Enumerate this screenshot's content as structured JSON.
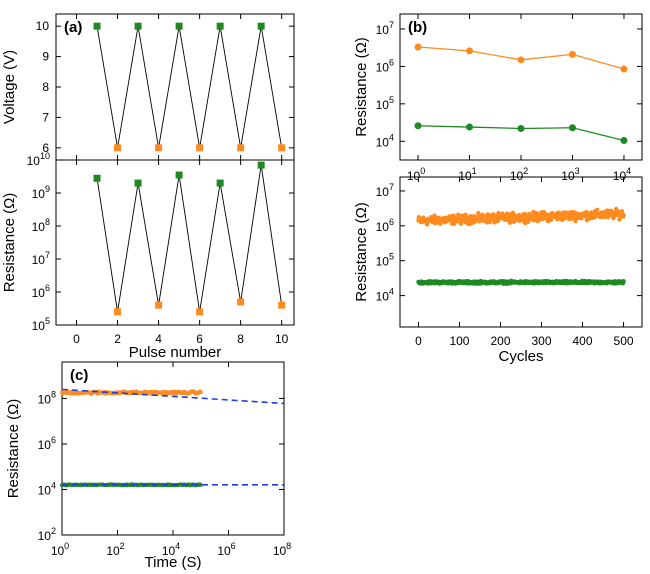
{
  "colors": {
    "on": "#1f8a24",
    "off": "#ff8a1e",
    "fit": "#1f3fe0",
    "line": "#000000"
  },
  "chart_data": [
    {
      "id": "a_top",
      "panel": "(a)",
      "type": "line",
      "ylabel": "Voltage (V)",
      "xlabel": "",
      "xlim": [
        -1,
        10.6
      ],
      "ylim": [
        5.6,
        10.4
      ],
      "xticks": [
        0,
        2,
        4,
        6,
        8,
        10
      ],
      "show_xtick_labels": false,
      "yticks": [
        6,
        7,
        8,
        9,
        10
      ],
      "x": [
        1,
        2,
        3,
        4,
        5,
        6,
        7,
        8,
        9,
        10
      ],
      "y": [
        10,
        6,
        10,
        6,
        10,
        6,
        10,
        6,
        10,
        6
      ],
      "point_colors": [
        "on",
        "off",
        "on",
        "off",
        "on",
        "off",
        "on",
        "off",
        "on",
        "off"
      ]
    },
    {
      "id": "a_bottom",
      "panel": "",
      "type": "line",
      "ylabel": "Resistance (Ω)",
      "xlabel": "Pulse number",
      "xlim": [
        -1,
        10.6
      ],
      "ylim": [
        5,
        10
      ],
      "log_y": true,
      "xticks": [
        0,
        2,
        4,
        6,
        8,
        10
      ],
      "show_xtick_labels": true,
      "yticks": [
        5,
        6,
        7,
        8,
        9,
        10
      ],
      "x": [
        1,
        2,
        3,
        4,
        5,
        6,
        7,
        8,
        9,
        10
      ],
      "y": [
        2800000000.0,
        250000.0,
        2000000000.0,
        400000.0,
        3500000000.0,
        250000.0,
        2000000000.0,
        500000.0,
        7000000000.0,
        400000.0
      ],
      "point_colors": [
        "on",
        "off",
        "on",
        "off",
        "on",
        "off",
        "on",
        "off",
        "on",
        "off"
      ]
    },
    {
      "id": "b_top",
      "panel": "(b)",
      "type": "line",
      "ylabel": "Resistance (Ω)",
      "xlabel": "Cycles",
      "log_x": true,
      "log_y": true,
      "xlim": [
        -0.35,
        4.35
      ],
      "ylim": [
        3.5,
        7.4
      ],
      "xticks": [
        0,
        1,
        2,
        3,
        4
      ],
      "yticks": [
        4,
        5,
        6,
        7
      ],
      "series": [
        {
          "color": "off",
          "x": [
            1,
            10,
            100,
            1000,
            10000
          ],
          "values": [
            3300000.0,
            2600000.0,
            1500000.0,
            2100000.0,
            850000.0
          ]
        },
        {
          "color": "on",
          "x": [
            1,
            10,
            100,
            1000,
            10000
          ],
          "values": [
            26000.0,
            24000.0,
            22000.0,
            23000.0,
            10500.0
          ]
        }
      ]
    },
    {
      "id": "b_bottom",
      "panel": "",
      "type": "scatter",
      "ylabel": "Resistance (Ω)",
      "xlabel": "Cycles",
      "log_y": true,
      "xlim": [
        -45,
        545
      ],
      "ylim": [
        3.1,
        7.4
      ],
      "xticks": [
        0,
        100,
        200,
        300,
        400,
        500
      ],
      "yticks": [
        4,
        5,
        6,
        7
      ],
      "series": [
        {
          "color": "off",
          "x_range": [
            0,
            500
          ],
          "level_start": 1400000.0,
          "level_end": 2200000.0,
          "spread_decades": 0.18
        },
        {
          "color": "on",
          "x_range": [
            0,
            500
          ],
          "level_start": 24000.0,
          "level_end": 24000.0,
          "spread_decades": 0.05
        }
      ]
    },
    {
      "id": "c",
      "panel": "(c)",
      "type": "scatter",
      "ylabel": "Resistance (Ω)",
      "xlabel": "Time (S)",
      "log_x": true,
      "log_y": true,
      "xlim": [
        0,
        8
      ],
      "ylim": [
        2,
        9.6
      ],
      "xticks": [
        0,
        2,
        4,
        6,
        8
      ],
      "yticks": [
        2,
        4,
        6,
        8
      ],
      "series": [
        {
          "color": "off",
          "x_log_range": [
            0,
            5
          ],
          "level": 180000000.0,
          "spread_decades": 0.08
        },
        {
          "color": "on",
          "x_log_range": [
            0,
            5
          ],
          "level": 16000.0,
          "spread_decades": 0.03
        }
      ],
      "fits": [
        {
          "color": "fit",
          "x": [
            1,
            100000000.0
          ],
          "values": [
            250000000.0,
            60000000.0
          ]
        },
        {
          "color": "fit",
          "x": [
            1,
            100000000.0
          ],
          "values": [
            16000.0,
            16000.0
          ]
        }
      ]
    }
  ]
}
